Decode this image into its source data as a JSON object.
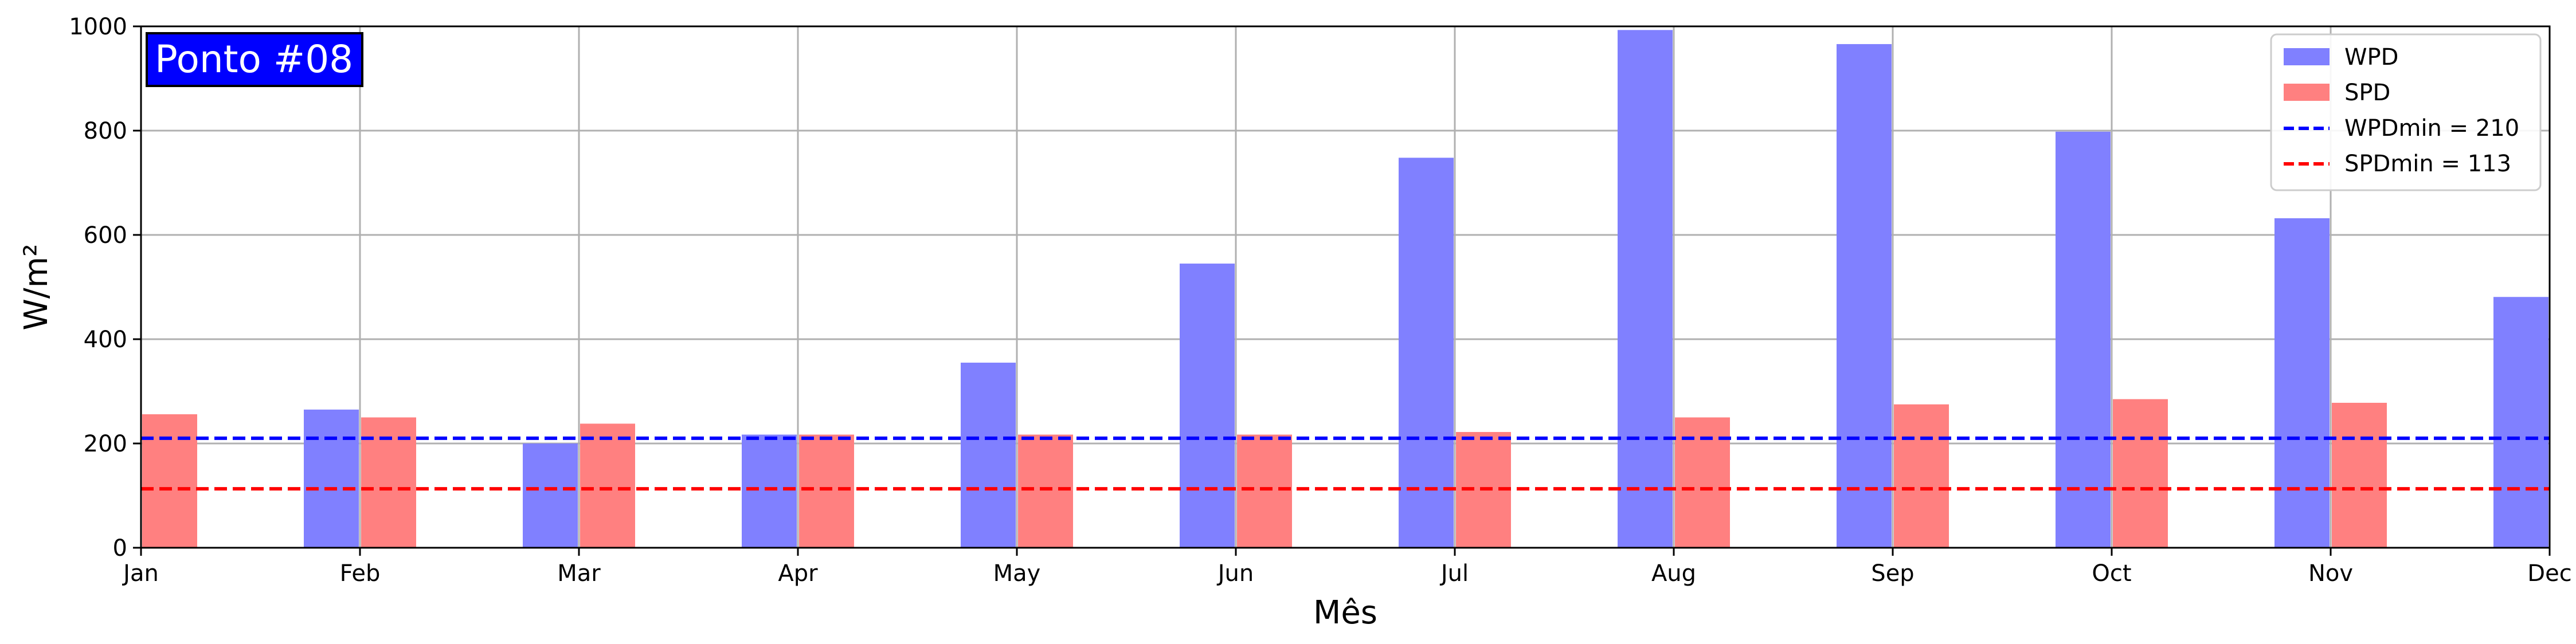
{
  "chart_data": {
    "type": "bar",
    "annotation": "Ponto #08",
    "xlabel": "Mês",
    "ylabel": "W/m²",
    "ylim": [
      0,
      1000
    ],
    "yticks": [
      0,
      200,
      400,
      600,
      800,
      1000
    ],
    "categories": [
      "Jan",
      "Feb",
      "Mar",
      "Apr",
      "May",
      "Jun",
      "Jul",
      "Aug",
      "Sep",
      "Oct",
      "Nov",
      "Dec"
    ],
    "series": [
      {
        "name": "WPD",
        "color": "#8080ff",
        "values": [
          null,
          265,
          200,
          217,
          355,
          545,
          748,
          993,
          966,
          798,
          632,
          481
        ]
      },
      {
        "name": "SPD",
        "color": "#ff8080",
        "values": [
          256,
          250,
          238,
          217,
          217,
          217,
          222,
          250,
          275,
          285,
          278,
          null
        ]
      }
    ],
    "reference_lines": [
      {
        "name": "WPDmin = 210",
        "value": 210,
        "color": "#0000ff",
        "style": "dashed"
      },
      {
        "name": "SPDmin = 113",
        "value": 113,
        "color": "#ff0000",
        "style": "dashed"
      }
    ],
    "grid": true,
    "legend": "top-right"
  }
}
